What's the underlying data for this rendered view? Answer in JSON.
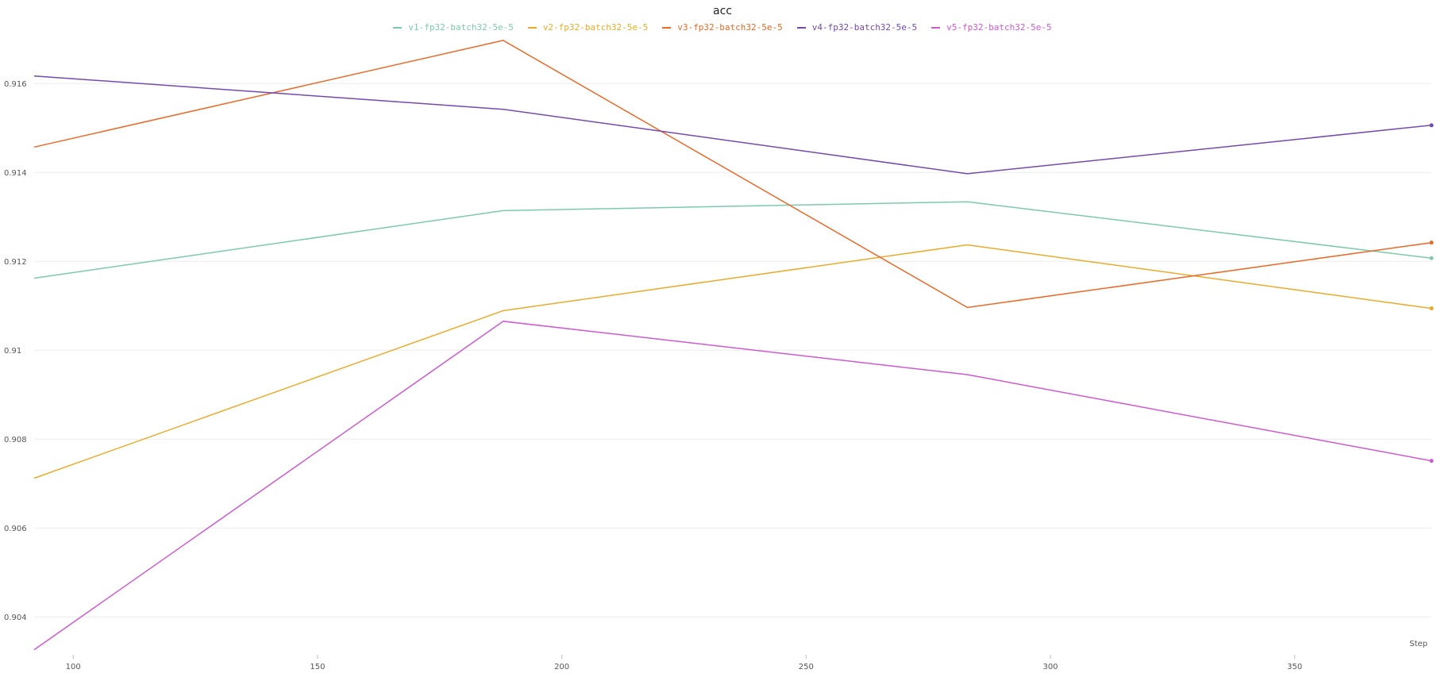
{
  "chart_data": {
    "type": "line",
    "title": "acc",
    "xlabel": "Step",
    "ylabel": "",
    "xlim": [
      92,
      378
    ],
    "ylim": [
      0.9032,
      0.9172
    ],
    "grid": "horizontal",
    "legend_position": "top-center",
    "xticks": [
      100,
      150,
      200,
      250,
      300,
      350
    ],
    "xtick_labels": [
      "100",
      "150",
      "200",
      "250",
      "300",
      "350"
    ],
    "yticks": [
      0.904,
      0.906,
      0.908,
      0.91,
      0.912,
      0.914,
      0.916
    ],
    "ytick_labels": [
      "0.904",
      "0.906",
      "0.908",
      "0.91",
      "0.912",
      "0.914",
      "0.916"
    ],
    "series": [
      {
        "name": "v1-fp32-batch32-5e-5",
        "color": "#7ccaad",
        "x": [
          92,
          188,
          283,
          378
        ],
        "values": [
          0.91162,
          0.91314,
          0.91334,
          0.91207
        ]
      },
      {
        "name": "v2-fp32-batch32-5e-5",
        "color": "#eaab2b",
        "x": [
          92,
          188,
          283,
          378
        ],
        "values": [
          0.90712,
          0.91089,
          0.91237,
          0.91094
        ]
      },
      {
        "name": "v3-fp32-batch32-5e-5",
        "color": "#ea6a28",
        "x": [
          92,
          188,
          283,
          378
        ],
        "values": [
          0.91457,
          0.91697,
          0.91096,
          0.91242
        ]
      },
      {
        "name": "v4-fp32-batch32-5e-5",
        "color": "#7449b0",
        "x": [
          92,
          188,
          283,
          378
        ],
        "values": [
          0.91617,
          0.91542,
          0.91397,
          0.91506
        ]
      },
      {
        "name": "v5-fp32-batch32-5e-5",
        "color": "#cf59d1",
        "x": [
          92,
          188,
          283,
          378
        ],
        "values": [
          0.90326,
          0.91065,
          0.90945,
          0.90751
        ]
      }
    ]
  }
}
